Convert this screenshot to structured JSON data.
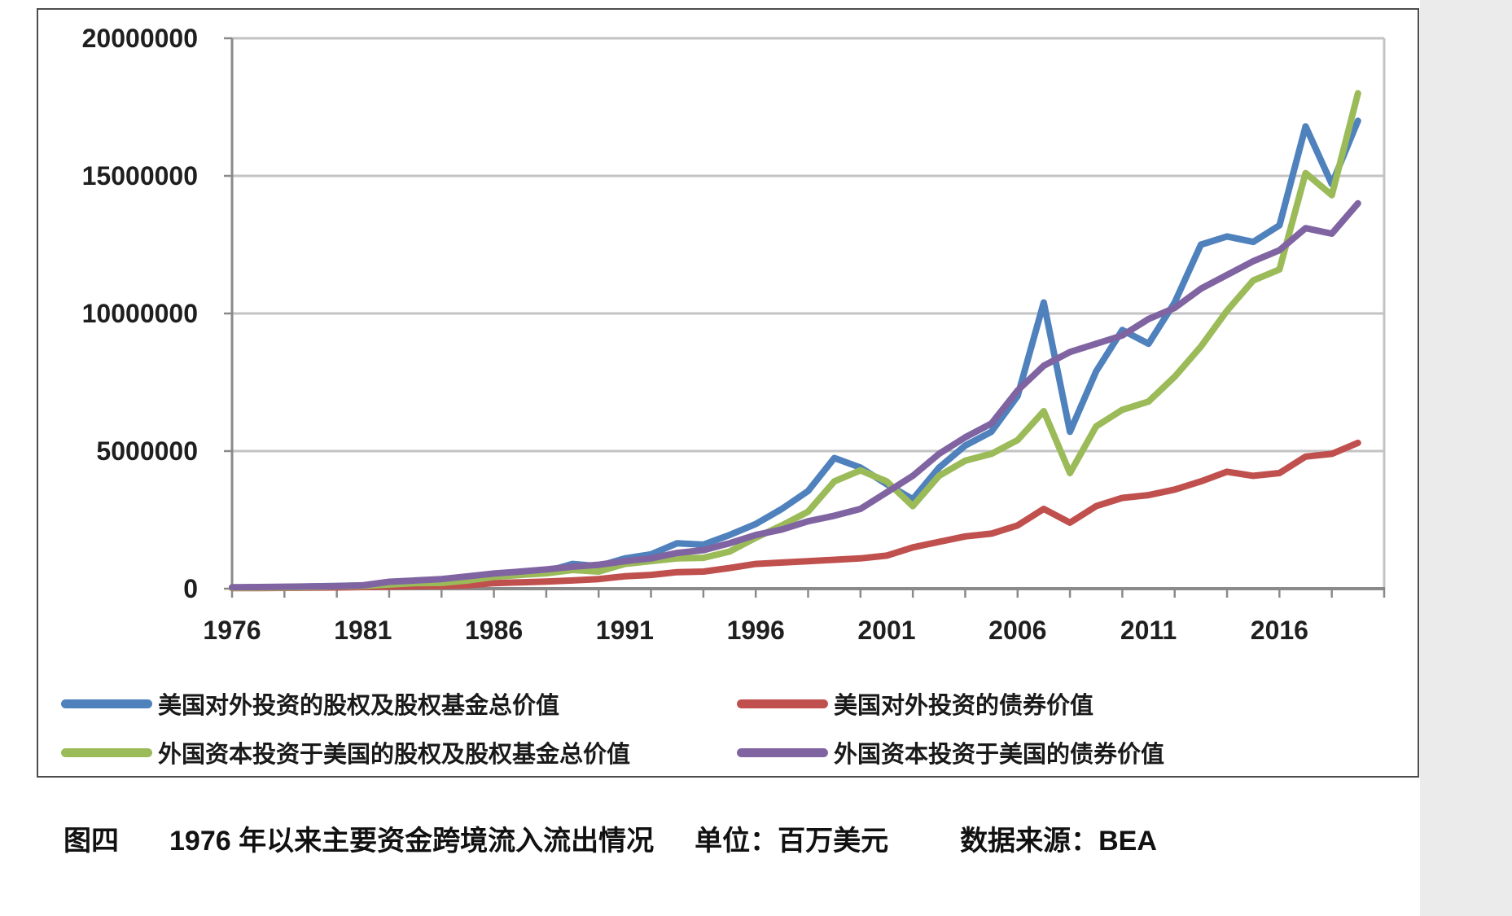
{
  "chart_data": {
    "type": "line",
    "title": "1976 年以来主要资金跨境流入流出情况",
    "unit": "百万美元",
    "source": "BEA",
    "grid": true,
    "legend_position": "bottom",
    "x": [
      1976,
      1977,
      1978,
      1979,
      1980,
      1981,
      1982,
      1983,
      1984,
      1985,
      1986,
      1987,
      1988,
      1989,
      1990,
      1991,
      1992,
      1993,
      1994,
      1995,
      1996,
      1997,
      1998,
      1999,
      2000,
      2001,
      2002,
      2003,
      2004,
      2005,
      2006,
      2007,
      2008,
      2009,
      2010,
      2011,
      2012,
      2013,
      2014,
      2015,
      2016,
      2017,
      2018,
      2019
    ],
    "x_tick_labels": [
      "1976",
      "1981",
      "1986",
      "1991",
      "1996",
      "2001",
      "2006",
      "2011",
      "2016"
    ],
    "y_axis": {
      "min": 0,
      "max": 20000000,
      "tick_interval": 5000000,
      "tick_labels": [
        "0",
        "5000000",
        "10000000",
        "15000000",
        "20000000"
      ]
    },
    "series": [
      {
        "name": "美国对外投资的股权及股权基金总价值",
        "color": "#4F81BD",
        "values": [
          40000,
          50000,
          60000,
          80000,
          100000,
          120000,
          150000,
          200000,
          220000,
          300000,
          450000,
          500000,
          620000,
          900000,
          820000,
          1100000,
          1250000,
          1650000,
          1600000,
          1950000,
          2350000,
          2900000,
          3550000,
          4750000,
          4400000,
          3800000,
          3250000,
          4400000,
          5200000,
          5700000,
          7000000,
          10400000,
          5700000,
          7900000,
          9400000,
          8900000,
          10400000,
          12500000,
          12800000,
          12600000,
          13200000,
          16800000,
          14700000,
          17000000
        ]
      },
      {
        "name": "美国对外投资的债券价值",
        "color": "#C0504D",
        "values": [
          20000,
          25000,
          30000,
          35000,
          45000,
          60000,
          75000,
          90000,
          100000,
          120000,
          200000,
          230000,
          260000,
          300000,
          350000,
          450000,
          500000,
          600000,
          620000,
          750000,
          900000,
          950000,
          1000000,
          1050000,
          1100000,
          1200000,
          1500000,
          1700000,
          1900000,
          2000000,
          2300000,
          2900000,
          2400000,
          3000000,
          3300000,
          3400000,
          3600000,
          3900000,
          4250000,
          4100000,
          4200000,
          4800000,
          4900000,
          5300000
        ]
      },
      {
        "name": "外国资本投资于美国的股权及股权基金总价值",
        "color": "#9BBB59",
        "values": [
          30000,
          35000,
          45000,
          60000,
          80000,
          100000,
          150000,
          200000,
          210000,
          300000,
          430000,
          500000,
          560000,
          680000,
          620000,
          900000,
          1000000,
          1100000,
          1120000,
          1350000,
          1850000,
          2300000,
          2800000,
          3900000,
          4300000,
          3900000,
          3000000,
          4100000,
          4650000,
          4900000,
          5400000,
          6450000,
          4200000,
          5900000,
          6500000,
          6800000,
          7700000,
          8800000,
          10100000,
          11200000,
          11600000,
          15100000,
          14300000,
          18000000
        ]
      },
      {
        "name": "外国资本投资于美国的债券价值",
        "color": "#8064A2",
        "values": [
          50000,
          60000,
          70000,
          80000,
          90000,
          120000,
          250000,
          300000,
          350000,
          450000,
          550000,
          620000,
          700000,
          800000,
          870000,
          1000000,
          1100000,
          1300000,
          1400000,
          1650000,
          1950000,
          2150000,
          2450000,
          2650000,
          2900000,
          3500000,
          4100000,
          4900000,
          5500000,
          6000000,
          7200000,
          8100000,
          8600000,
          8900000,
          9200000,
          9800000,
          10200000,
          10900000,
          11400000,
          11900000,
          12300000,
          13100000,
          12900000,
          14000000
        ]
      }
    ],
    "colors": {
      "gridline": "#c3c3c3",
      "axis": "#8a8a8a",
      "text": "#1f1f1f"
    }
  },
  "caption": {
    "figure_label": "图四",
    "title": "1976 年以来主要资金跨境流入流出情况",
    "unit_label": "单位：百万美元",
    "source_label": "数据来源：BEA"
  }
}
